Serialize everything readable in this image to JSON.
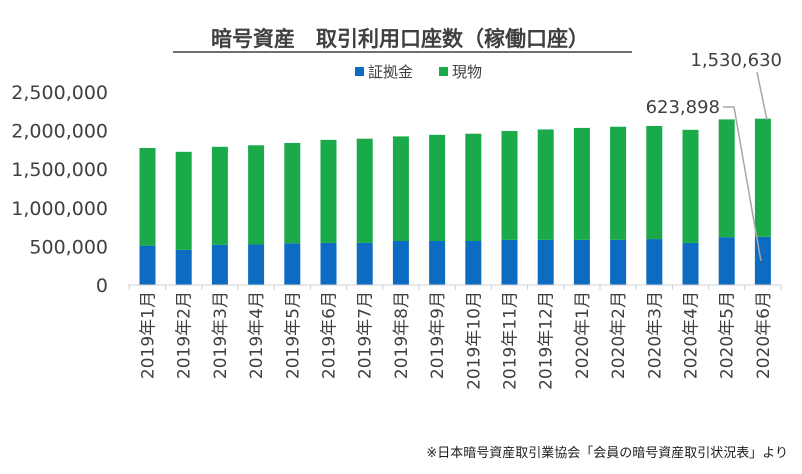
{
  "chart_data": {
    "type": "bar",
    "stacked": true,
    "title": "暗号資産　取引利用口座数（稼働口座）",
    "categories": [
      "2019年1月",
      "2019年2月",
      "2019年3月",
      "2019年4月",
      "2019年5月",
      "2019年6月",
      "2019年7月",
      "2019年8月",
      "2019年9月",
      "2019年10月",
      "2019年11月",
      "2019年12月",
      "2020年1月",
      "2020年2月",
      "2020年3月",
      "2020年4月",
      "2020年5月",
      "2020年6月"
    ],
    "series": [
      {
        "name": "証拠金",
        "color": "#0e6bc2",
        "values": [
          510000,
          455000,
          520000,
          525000,
          540000,
          545000,
          545000,
          570000,
          570000,
          570000,
          585000,
          585000,
          585000,
          585000,
          595000,
          545000,
          620000,
          623898
        ]
      },
      {
        "name": "現物",
        "color": "#1aaa4a",
        "values": [
          1265000,
          1270000,
          1270000,
          1285000,
          1300000,
          1335000,
          1350000,
          1355000,
          1375000,
          1390000,
          1410000,
          1430000,
          1450000,
          1465000,
          1465000,
          1465000,
          1525000,
          1530630
        ]
      }
    ],
    "ylim": [
      0,
      2500000
    ],
    "yticks": [
      "0",
      "500,000",
      "1,000,000",
      "1,500,000",
      "2,000,000",
      "2,500,000"
    ],
    "ytick_values": [
      0,
      500000,
      1000000,
      1500000,
      2000000,
      2500000
    ],
    "grid": false,
    "legend_position": "top",
    "annotations": [
      {
        "label": "1,530,630",
        "series": "現物",
        "category_index": 17
      },
      {
        "label": "623,898",
        "series": "証拠金",
        "category_index": 17
      }
    ],
    "source_note": "※日本暗号資産取引業協会「会員の暗号資産取引状況表」より"
  }
}
